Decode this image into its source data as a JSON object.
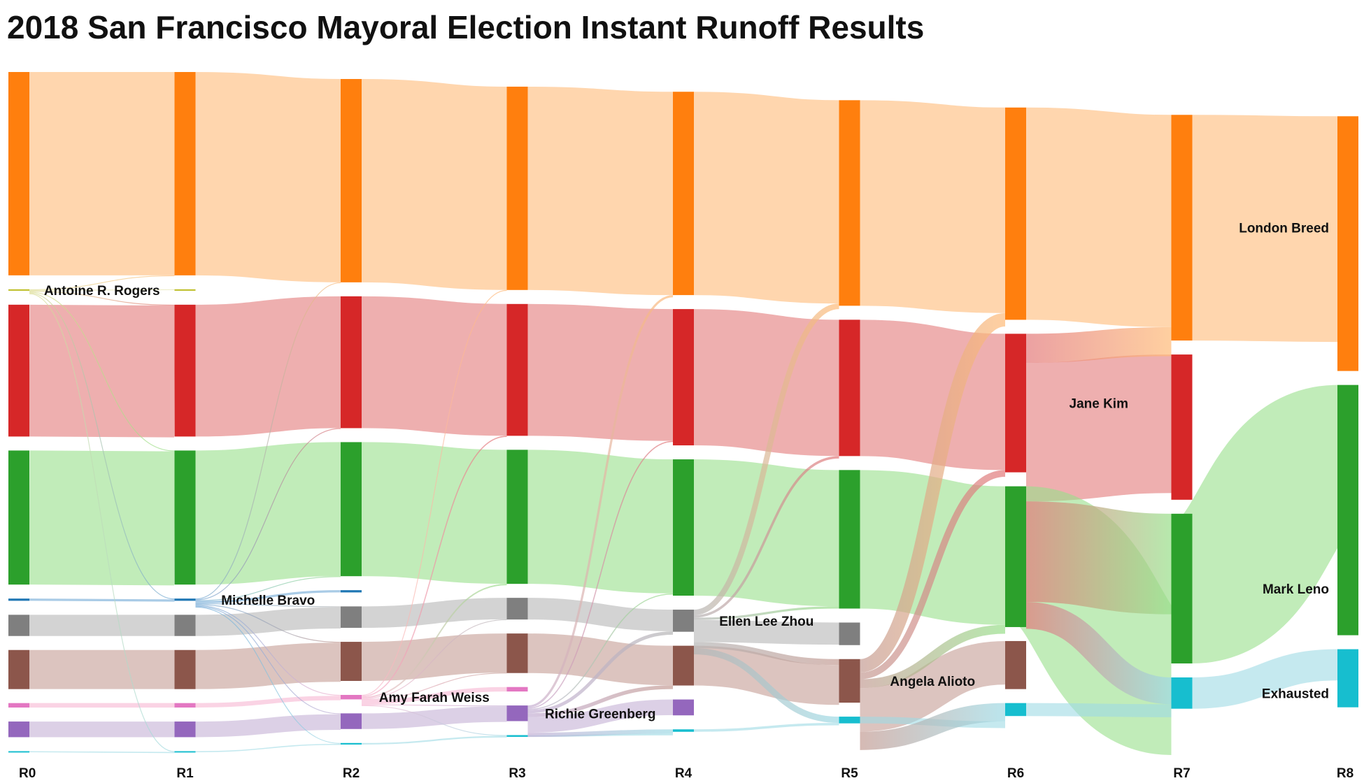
{
  "title": "2018 San Francisco Mayoral Election Instant Runoff Results",
  "rounds": [
    "R0",
    "R1",
    "R2",
    "R3",
    "R4",
    "R5",
    "R6",
    "R7",
    "R8"
  ],
  "candidates": [
    {
      "id": "breed",
      "name": "London Breed",
      "color": "#ff7f0e",
      "link_color": "#ffbb78"
    },
    {
      "id": "rogers",
      "name": "Antoine R. Rogers",
      "color": "#bcbd22",
      "link_color": "#dbdb8d"
    },
    {
      "id": "kim",
      "name": "Jane Kim",
      "color": "#d62728",
      "link_color": "#e3797a"
    },
    {
      "id": "leno",
      "name": "Mark Leno",
      "color": "#2ca02c",
      "link_color": "#98df8a"
    },
    {
      "id": "bravo",
      "name": "Michelle Bravo",
      "color": "#1f77b4",
      "link_color": "#6fa8d6"
    },
    {
      "id": "zhou",
      "name": "Ellen Lee Zhou",
      "color": "#7f7f7f",
      "link_color": "#b5b5b5"
    },
    {
      "id": "alioto",
      "name": "Angela Alioto",
      "color": "#8c564b",
      "link_color": "#c49c94"
    },
    {
      "id": "weiss",
      "name": "Amy Farah Weiss",
      "color": "#e377c2",
      "link_color": "#f7b6d2"
    },
    {
      "id": "greenberg",
      "name": "Richie Greenberg",
      "color": "#9467bd",
      "link_color": "#c5b0d5"
    },
    {
      "id": "exhausted",
      "name": "Exhausted",
      "color": "#17becf",
      "link_color": "#9edae5"
    }
  ],
  "label_rounds": {
    "rogers": 0,
    "bravo": 1,
    "weiss": 2,
    "greenberg": 3,
    "zhou": 4,
    "alioto": 5,
    "kim": 6,
    "breed": 7,
    "leno": 7,
    "exhausted": 7
  },
  "chart_data": {
    "type": "sankey",
    "unit": "votes (approximate)",
    "columns": [
      "R0",
      "R1",
      "R2",
      "R3",
      "R4",
      "R5",
      "R6",
      "R7",
      "R8"
    ],
    "nodes": {
      "breed": [
        91000,
        91000,
        91000,
        91000,
        91000,
        92000,
        95000,
        101000,
        114000
      ],
      "rogers": [
        300,
        300,
        0,
        0,
        0,
        0,
        0,
        0,
        0
      ],
      "kim": [
        59000,
        59000,
        59000,
        59000,
        61000,
        61000,
        62000,
        65000,
        0
      ],
      "leno": [
        60000,
        60000,
        60000,
        60000,
        61000,
        62000,
        63000,
        67000,
        112000
      ],
      "bravo": [
        1000,
        1000,
        1000,
        0,
        0,
        0,
        0,
        0,
        0
      ],
      "zhou": [
        9500,
        9500,
        9600,
        9700,
        9900,
        10100,
        0,
        0,
        0
      ],
      "alioto": [
        17500,
        17500,
        17500,
        17700,
        17800,
        19500,
        21500,
        0,
        0
      ],
      "weiss": [
        2000,
        2000,
        2000,
        2000,
        0,
        0,
        0,
        0,
        0
      ],
      "greenberg": [
        7000,
        7000,
        7000,
        7000,
        7100,
        0,
        0,
        0,
        0
      ],
      "exhausted": [
        500,
        500,
        700,
        800,
        1100,
        3000,
        5800,
        14000,
        26000
      ]
    },
    "transfers": [
      {
        "round": "R1",
        "from": "rogers",
        "to": "breed",
        "votes": 80
      },
      {
        "round": "R1",
        "from": "rogers",
        "to": "kim",
        "votes": 60
      },
      {
        "round": "R1",
        "from": "rogers",
        "to": "leno",
        "votes": 60
      },
      {
        "round": "R1",
        "from": "rogers",
        "to": "bravo",
        "votes": 20
      },
      {
        "round": "R1",
        "from": "rogers",
        "to": "exhausted",
        "votes": 80
      },
      {
        "round": "R2",
        "from": "bravo",
        "to": "breed",
        "votes": 200
      },
      {
        "round": "R2",
        "from": "bravo",
        "to": "kim",
        "votes": 200
      },
      {
        "round": "R2",
        "from": "bravo",
        "to": "leno",
        "votes": 200
      },
      {
        "round": "R2",
        "from": "bravo",
        "to": "zhou",
        "votes": 100
      },
      {
        "round": "R2",
        "from": "bravo",
        "to": "alioto",
        "votes": 100
      },
      {
        "round": "R2",
        "from": "bravo",
        "to": "weiss",
        "votes": 50
      },
      {
        "round": "R2",
        "from": "bravo",
        "to": "greenberg",
        "votes": 50
      },
      {
        "round": "R2",
        "from": "bravo",
        "to": "exhausted",
        "votes": 100
      },
      {
        "round": "R3",
        "from": "weiss",
        "to": "breed",
        "votes": 300
      },
      {
        "round": "R3",
        "from": "weiss",
        "to": "kim",
        "votes": 500
      },
      {
        "round": "R3",
        "from": "weiss",
        "to": "leno",
        "votes": 600
      },
      {
        "round": "R3",
        "from": "weiss",
        "to": "zhou",
        "votes": 100
      },
      {
        "round": "R3",
        "from": "weiss",
        "to": "alioto",
        "votes": 100
      },
      {
        "round": "R3",
        "from": "weiss",
        "to": "greenberg",
        "votes": 100
      },
      {
        "round": "R3",
        "from": "weiss",
        "to": "exhausted",
        "votes": 300
      },
      {
        "round": "R4",
        "from": "greenberg",
        "to": "breed",
        "votes": 1000
      },
      {
        "round": "R4",
        "from": "greenberg",
        "to": "kim",
        "votes": 500
      },
      {
        "round": "R4",
        "from": "greenberg",
        "to": "leno",
        "votes": 500
      },
      {
        "round": "R4",
        "from": "greenberg",
        "to": "zhou",
        "votes": 1500
      },
      {
        "round": "R4",
        "from": "greenberg",
        "to": "alioto",
        "votes": 1700
      },
      {
        "round": "R4",
        "from": "greenberg",
        "to": "exhausted",
        "votes": 1900
      },
      {
        "round": "R5",
        "from": "zhou",
        "to": "breed",
        "votes": 2500
      },
      {
        "round": "R5",
        "from": "zhou",
        "to": "kim",
        "votes": 1100
      },
      {
        "round": "R5",
        "from": "zhou",
        "to": "leno",
        "votes": 1000
      },
      {
        "round": "R5",
        "from": "zhou",
        "to": "alioto",
        "votes": 2700
      },
      {
        "round": "R5",
        "from": "zhou",
        "to": "exhausted",
        "votes": 2800
      },
      {
        "round": "R6",
        "from": "alioto",
        "to": "breed",
        "votes": 6000
      },
      {
        "round": "R6",
        "from": "alioto",
        "to": "kim",
        "votes": 3000
      },
      {
        "round": "R6",
        "from": "alioto",
        "to": "leno",
        "votes": 4000
      },
      {
        "round": "R6",
        "from": "alioto",
        "to": "exhausted",
        "votes": 8200
      },
      {
        "round": "R7",
        "from": "kim",
        "to": "breed",
        "votes": 13000
      },
      {
        "round": "R7",
        "from": "kim",
        "to": "leno",
        "votes": 45000
      },
      {
        "round": "R7",
        "from": "kim",
        "to": "exhausted",
        "votes": 12000
      }
    ]
  }
}
